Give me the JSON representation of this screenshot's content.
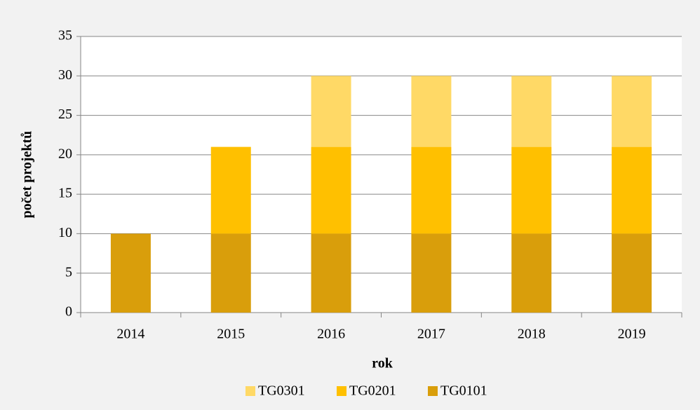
{
  "chart_data": {
    "type": "stacked_bar",
    "x_label": "rok",
    "y_label": "počet projektů",
    "categories": [
      "2014",
      "2015",
      "2016",
      "2017",
      "2018",
      "2019"
    ],
    "series": [
      {
        "name": "TG0301",
        "color": "#ffd966",
        "values": [
          0,
          0,
          9,
          9,
          9,
          9
        ]
      },
      {
        "name": "TG0201",
        "color": "#ffc000",
        "values": [
          0,
          11,
          11,
          11,
          11,
          11
        ]
      },
      {
        "name": "TG0101",
        "color": "#d99e0b",
        "values": [
          10,
          10,
          10,
          10,
          10,
          10
        ]
      }
    ],
    "ylim": [
      0,
      35
    ],
    "yticks": [
      0,
      5,
      10,
      15,
      20,
      25,
      30,
      35
    ],
    "grid": true
  }
}
